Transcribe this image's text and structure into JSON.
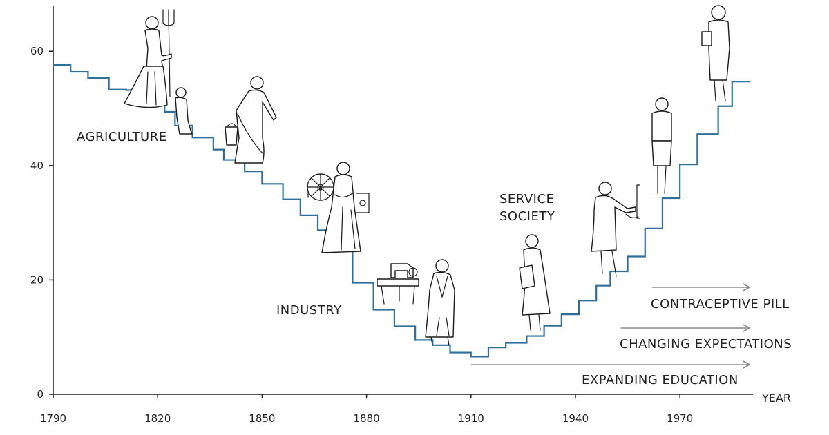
{
  "chart_data": {
    "type": "line",
    "step": true,
    "title": "",
    "xlabel": "YEAR",
    "ylabel": "",
    "xlim": [
      1790,
      1991
    ],
    "ylim": [
      0,
      68
    ],
    "x_ticks": [
      1790,
      1820,
      1850,
      1880,
      1910,
      1940,
      1970
    ],
    "y_ticks": [
      0,
      20,
      40,
      60
    ],
    "color": "#2e6f9e",
    "series": [
      {
        "name": "",
        "x": [
          1790,
          1795,
          1800,
          1806,
          1811,
          1816,
          1822,
          1825,
          1830,
          1836,
          1839,
          1845,
          1850,
          1856,
          1861,
          1866,
          1870,
          1876,
          1882,
          1888,
          1894,
          1899,
          1904,
          1910,
          1915,
          1920,
          1926,
          1931,
          1936,
          1941,
          1946,
          1950,
          1955,
          1960,
          1965,
          1970,
          1975,
          1981,
          1985,
          1990
        ],
        "values": [
          57.6,
          56.4,
          55.3,
          53.3,
          53.2,
          52.0,
          49.4,
          47.0,
          44.9,
          42.8,
          41.0,
          39.0,
          36.8,
          34.1,
          31.3,
          28.7,
          27.9,
          19.5,
          14.8,
          11.9,
          9.5,
          8.6,
          7.3,
          6.6,
          8.2,
          9.0,
          10.2,
          12.0,
          14.0,
          16.4,
          19.0,
          21.5,
          24.1,
          29.0,
          34.3,
          40.2,
          45.5,
          50.4,
          54.7,
          54.7
        ]
      }
    ],
    "annotations": {
      "eras": [
        "AGRICULTURE",
        "INDUSTRY",
        "SERVICE",
        "SOCIETY"
      ],
      "trends": [
        {
          "label": "CONTRACEPTIVE PILL",
          "from": 1962,
          "to": 1990
        },
        {
          "label": "CHANGING EXPECTATIONS",
          "from": 1953,
          "to": 1990
        },
        {
          "label": "EXPANDING EDUCATION",
          "from": 1910,
          "to": 1990
        }
      ]
    }
  }
}
